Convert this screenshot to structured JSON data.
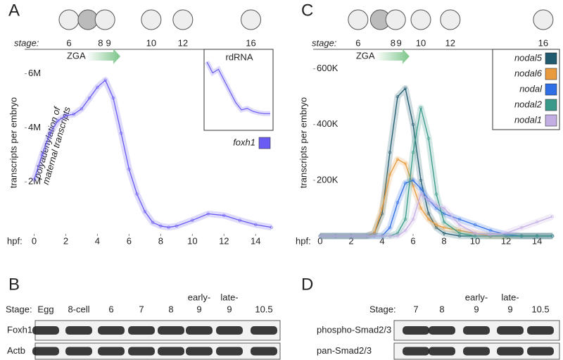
{
  "chart_data": [
    {
      "type": "line",
      "panel": "A",
      "stage_label": "stage:",
      "stages": [
        {
          "value": 2.2,
          "label": "6"
        },
        {
          "value": 4.2,
          "label": "8"
        },
        {
          "value": 4.7,
          "label": "9"
        },
        {
          "value": 7.4,
          "label": "10"
        },
        {
          "value": 9.4,
          "label": "12"
        },
        {
          "value": 13.7,
          "label": "16"
        }
      ],
      "zga_label": "ZGA",
      "annotation_lines": [
        "polyadenylation of",
        "maternal transcripts"
      ],
      "x_label": "hpf:",
      "y_label": "transcripts per embryo",
      "xlim": [
        -0.6,
        15.1
      ],
      "xticks": [
        0,
        2,
        4,
        6,
        8,
        10,
        12,
        14
      ],
      "ylim": [
        0,
        6900000
      ],
      "yticks": [
        {
          "value": 2000000,
          "label": "2M"
        },
        {
          "value": 4000000,
          "label": "4M"
        },
        {
          "value": 6000000,
          "label": "6M"
        }
      ],
      "x": [
        0,
        0.5,
        1,
        1.5,
        2,
        2.5,
        3,
        3.5,
        4,
        4.5,
        5,
        5.5,
        6,
        6.5,
        7,
        7.5,
        8,
        8.5,
        9,
        10,
        11,
        12,
        13,
        14,
        15
      ],
      "series": [
        {
          "name": "foxh1",
          "color": "#6a5cf2",
          "values": [
            2080000,
            3000000,
            3800000,
            4260000,
            4450000,
            4500000,
            4700000,
            5100000,
            5500000,
            5760000,
            5100000,
            3800000,
            2470000,
            1550000,
            900000,
            500000,
            370000,
            320000,
            370000,
            580000,
            820000,
            760000,
            580000,
            420000,
            320000
          ]
        }
      ],
      "inset": {
        "title": "rdRNA",
        "values": [
          85,
          70,
          75,
          60,
          45,
          30,
          20,
          22,
          18,
          16,
          15,
          15
        ]
      }
    },
    {
      "type": "line",
      "panel": "C",
      "stage_label": "stage:",
      "stages": [
        {
          "value": 2.45,
          "label": "6"
        },
        {
          "value": 4.7,
          "label": "8"
        },
        {
          "value": 5.1,
          "label": "9"
        },
        {
          "value": 6.5,
          "label": "10"
        },
        {
          "value": 8.4,
          "label": "12"
        },
        {
          "value": 14.4,
          "label": "16"
        }
      ],
      "zga_label": "ZGA",
      "x_label": "hpf:",
      "y_label": "transcripts per embryo",
      "xlim": [
        -0.45,
        15.45
      ],
      "xticks": [
        0,
        2,
        4,
        6,
        8,
        10,
        12,
        14
      ],
      "ylim": [
        0,
        670000
      ],
      "yticks": [
        {
          "value": 200000,
          "label": "200K"
        },
        {
          "value": 400000,
          "label": "400K"
        },
        {
          "value": 600000,
          "label": "600K"
        }
      ],
      "x": [
        0,
        1,
        2,
        3,
        3.5,
        4,
        4.5,
        5,
        5.5,
        6,
        6.5,
        7,
        7.5,
        8,
        9,
        10,
        11,
        12,
        13,
        14,
        15
      ],
      "series": [
        {
          "name": "nodal5",
          "color": "#1f5a6e",
          "values": [
            0,
            0,
            0,
            0,
            10000,
            80000,
            300000,
            500000,
            530000,
            400000,
            200000,
            80000,
            30000,
            10000,
            0,
            0,
            0,
            0,
            0,
            0,
            0
          ]
        },
        {
          "name": "nodal6",
          "color": "#e89a3c",
          "values": [
            0,
            0,
            0,
            0,
            10000,
            100000,
            220000,
            275000,
            260000,
            180000,
            100000,
            60000,
            40000,
            30000,
            20000,
            10000,
            0,
            0,
            0,
            0,
            0
          ]
        },
        {
          "name": "nodal",
          "color": "#2f6fe6",
          "values": [
            0,
            0,
            0,
            0,
            0,
            0,
            30000,
            120000,
            190000,
            200000,
            170000,
            130000,
            100000,
            80000,
            60000,
            40000,
            20000,
            5000,
            0,
            0,
            0
          ]
        },
        {
          "name": "nodal2",
          "color": "#3a9a8a",
          "values": [
            0,
            0,
            0,
            0,
            0,
            0,
            0,
            10000,
            60000,
            300000,
            460000,
            350000,
            150000,
            50000,
            10000,
            0,
            0,
            0,
            0,
            0,
            0
          ]
        },
        {
          "name": "nodal1",
          "color": "#c3aee3",
          "values": [
            0,
            0,
            0,
            0,
            0,
            0,
            0,
            0,
            20000,
            60000,
            150000,
            130000,
            110000,
            100000,
            40000,
            10000,
            5000,
            10000,
            30000,
            50000,
            70000
          ]
        }
      ]
    }
  ],
  "blots": [
    {
      "panel": "B",
      "stage_label": "Stage:",
      "lanes": [
        [
          "Egg"
        ],
        [
          "8-cell"
        ],
        [
          "6"
        ],
        [
          "7"
        ],
        [
          "8"
        ],
        [
          "early-",
          "9"
        ],
        [
          "late-",
          "9"
        ],
        [
          "10.5"
        ]
      ],
      "rows": [
        "Foxh1",
        "Actb"
      ]
    },
    {
      "panel": "D",
      "stage_label": "Stage:",
      "lanes": [
        [
          "7"
        ],
        [
          "8"
        ],
        [
          "early-",
          "9"
        ],
        [
          "late-",
          "9"
        ],
        [
          "10.5"
        ]
      ],
      "rows": [
        "phospho-Smad2/3",
        "pan-Smad2/3"
      ]
    }
  ]
}
